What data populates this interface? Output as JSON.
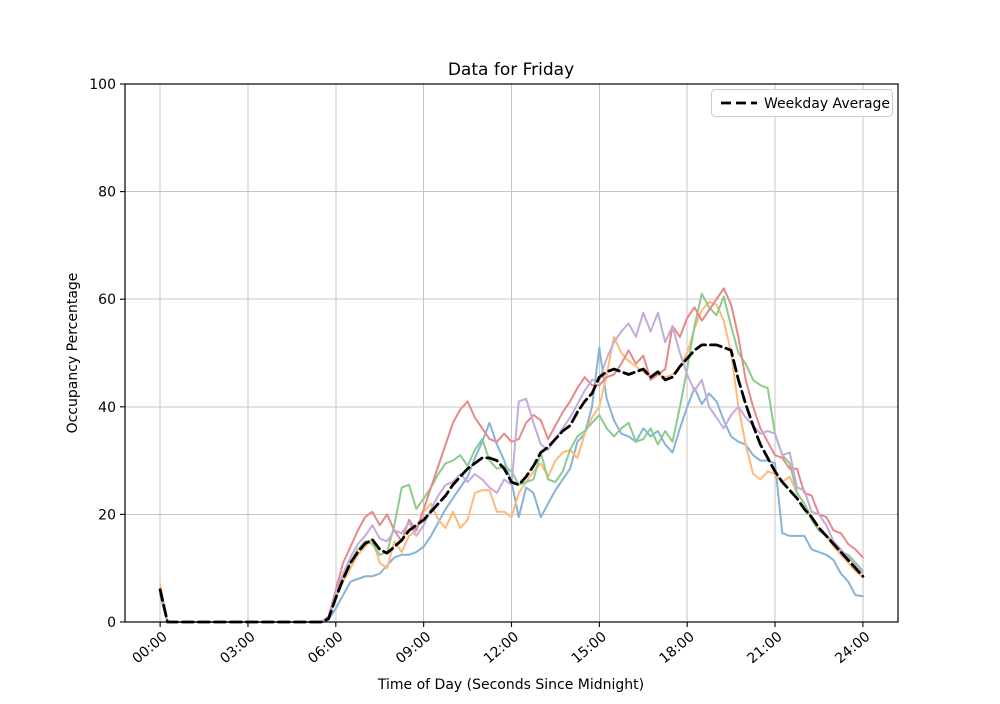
{
  "chart_data": {
    "type": "line",
    "title": "Data for Friday",
    "xlabel": "Time of Day (Seconds Since Midnight)",
    "ylabel": "Occupancy Percentage",
    "grid": true,
    "grid_color": "#c6c6c6",
    "legend": {
      "label": "Weekday Average",
      "position": "upper right"
    },
    "ylim": [
      0,
      100
    ],
    "xlim": [
      -4320,
      90720
    ],
    "y_ticks": [
      0,
      20,
      40,
      60,
      80,
      100
    ],
    "x_ticks": [
      {
        "seconds": 0,
        "label": "00:00"
      },
      {
        "seconds": 10800,
        "label": "03:00"
      },
      {
        "seconds": 21600,
        "label": "06:00"
      },
      {
        "seconds": 32400,
        "label": "09:00"
      },
      {
        "seconds": 43200,
        "label": "12:00"
      },
      {
        "seconds": 54000,
        "label": "15:00"
      },
      {
        "seconds": 64800,
        "label": "18:00"
      },
      {
        "seconds": 75600,
        "label": "21:00"
      },
      {
        "seconds": 86400,
        "label": "24:00"
      }
    ],
    "x": {
      "start": 0,
      "step": 900,
      "count": 97,
      "unit": "seconds"
    },
    "series": [
      {
        "id": "friday-blue",
        "color": "#84B4D6",
        "width": 2,
        "dashed": false,
        "values": [
          5,
          0,
          0,
          0,
          0,
          0,
          0,
          0,
          0,
          0,
          0,
          0,
          0,
          0,
          0,
          0,
          0,
          0,
          0,
          0,
          0,
          0,
          0,
          0.5,
          2.5,
          5,
          7.5,
          8,
          8.5,
          8.5,
          9,
          10.5,
          12,
          12.5,
          12.5,
          13,
          14,
          16,
          18.5,
          21,
          23,
          25,
          27,
          30.5,
          33.5,
          37,
          33,
          30,
          26,
          19.5,
          25,
          24,
          19.5,
          22,
          24.5,
          26.5,
          28.5,
          33.5,
          35,
          40,
          51,
          41.5,
          37.5,
          35,
          34.5,
          33.5,
          36,
          34.5,
          35.5,
          33,
          31.5,
          36,
          40,
          43.5,
          40.5,
          42.5,
          41,
          37.5,
          34.5,
          33.5,
          33,
          31,
          30,
          30,
          29.5,
          16.5,
          16,
          16,
          16,
          13.5,
          13,
          12.5,
          11.5,
          9,
          7.5,
          5,
          4.8
        ]
      },
      {
        "id": "friday-orange",
        "color": "#FFB97A",
        "width": 2,
        "dashed": false,
        "values": [
          7,
          0,
          0,
          0,
          0,
          0,
          0,
          0,
          0,
          0,
          0,
          0,
          0,
          0,
          0,
          0,
          0,
          0,
          0,
          0,
          0,
          0,
          0,
          0.5,
          4.5,
          7.5,
          10,
          12.5,
          14,
          15.5,
          11,
          10,
          15,
          13,
          16,
          17,
          20.5,
          22,
          19,
          17.5,
          20.5,
          17.5,
          19,
          24,
          24.5,
          24.5,
          20.5,
          20.5,
          19.5,
          24,
          26,
          28,
          29.5,
          27,
          30,
          31.5,
          32,
          30.5,
          35,
          38,
          40,
          46,
          53,
          50,
          48.5,
          47.5,
          46.5,
          45.5,
          46,
          45.5,
          46,
          47.5,
          50,
          54.5,
          58,
          59.5,
          59,
          56,
          50,
          40,
          33,
          27.5,
          26.5,
          28,
          27.5,
          26,
          27,
          24,
          22,
          19.5,
          17.5,
          16,
          14,
          12.5,
          11,
          9.5,
          8.3
        ]
      },
      {
        "id": "friday-green",
        "color": "#8BCB8B",
        "width": 2,
        "dashed": false,
        "values": [
          6,
          0,
          0,
          0,
          0,
          0,
          0,
          0,
          0,
          0,
          0,
          0,
          0,
          0,
          0,
          0,
          0,
          0,
          0,
          0,
          0,
          0,
          0,
          0.5,
          5.5,
          8.5,
          11,
          13.5,
          15,
          14.5,
          12.5,
          13,
          18,
          25,
          25.5,
          21,
          23,
          25,
          27.5,
          29.5,
          30,
          31,
          29,
          32,
          34,
          30,
          28.5,
          29,
          28,
          25.5,
          26,
          26.5,
          31.5,
          26.5,
          26,
          28,
          32,
          34.5,
          35.5,
          37,
          38.5,
          36,
          34.5,
          36,
          37,
          33.5,
          34,
          36,
          33,
          35.5,
          33.5,
          40,
          47,
          55,
          61,
          58.5,
          57,
          60.5,
          55,
          50,
          48,
          45,
          44,
          43.5,
          35,
          31,
          29.5,
          24,
          22,
          19,
          17,
          16,
          15,
          13,
          12.5,
          11,
          9.5
        ]
      },
      {
        "id": "friday-red",
        "color": "#E88889",
        "width": 2,
        "dashed": false,
        "values": [
          6,
          0,
          0,
          0,
          0,
          0,
          0,
          0,
          0,
          0,
          0,
          0,
          0,
          0,
          0,
          0,
          0,
          0,
          0,
          0,
          0,
          0,
          0,
          1,
          6,
          11,
          14,
          17,
          19.5,
          20.5,
          18,
          20,
          17,
          15,
          19,
          17,
          21,
          25,
          29,
          33,
          37,
          39.5,
          41,
          38,
          36,
          34,
          33.5,
          35,
          33.5,
          34,
          37,
          38.5,
          37.5,
          34,
          36.5,
          39,
          41,
          43.5,
          45.5,
          44,
          44,
          45.5,
          46,
          48,
          50.5,
          48,
          49.5,
          45,
          46,
          47,
          55,
          53,
          56.5,
          58.5,
          56,
          58,
          60,
          62,
          59,
          53,
          45,
          40,
          36,
          33.5,
          31,
          30.5,
          28.5,
          28.5,
          24,
          23.5,
          20,
          19.5,
          17,
          16.5,
          14.5,
          13.5,
          12
        ]
      },
      {
        "id": "friday-purple",
        "color": "#C4ABDB",
        "width": 2,
        "dashed": false,
        "values": [
          6,
          0,
          0,
          0,
          0,
          0,
          0,
          0,
          0,
          0,
          0,
          0,
          0,
          0,
          0,
          0,
          0,
          0,
          0,
          0,
          0,
          0,
          0,
          0.5,
          5.5,
          9,
          12,
          14.5,
          16,
          18,
          15.5,
          15,
          17,
          16.5,
          18.5,
          16,
          18,
          21,
          23.5,
          25.5,
          26,
          27.5,
          26,
          27.5,
          26.5,
          25,
          24,
          26.5,
          25.5,
          41,
          41.5,
          37,
          33,
          32,
          34,
          36,
          38,
          40.5,
          43,
          45,
          45,
          49,
          52,
          54,
          55.5,
          53,
          57.5,
          54,
          57.5,
          52,
          55,
          50,
          46,
          43,
          45,
          40,
          38,
          36,
          38.5,
          40,
          38,
          36.5,
          35,
          35.5,
          35,
          31,
          31.5,
          25,
          24.5,
          20.5,
          20,
          18,
          15,
          13.5,
          12,
          10.5,
          9
        ]
      },
      {
        "id": "weekday-average",
        "name": "Weekday Average",
        "color": "#000000",
        "width": 2.8,
        "dashed": true,
        "values": [
          6,
          0,
          0,
          0,
          0,
          0,
          0,
          0,
          0,
          0,
          0,
          0,
          0,
          0,
          0,
          0,
          0,
          0,
          0,
          0,
          0,
          0,
          0,
          0.6,
          4.5,
          8,
          11,
          13,
          14.6,
          15.3,
          13.5,
          12.8,
          14,
          15.2,
          17,
          18,
          19,
          20.5,
          22,
          23.5,
          25.5,
          27,
          28.5,
          29.5,
          30.5,
          30.5,
          30,
          28.5,
          26,
          25.5,
          27,
          29,
          31.5,
          32.5,
          34,
          35.5,
          36.5,
          39,
          41,
          42.5,
          45.5,
          46.5,
          47,
          46.5,
          46,
          46.5,
          47,
          45.5,
          46.5,
          45,
          45.5,
          47.5,
          49,
          50.5,
          51.5,
          51.5,
          51.5,
          51,
          50.5,
          45,
          40.5,
          36.5,
          33,
          30.5,
          28,
          26,
          24.5,
          23,
          21,
          19.5,
          17.5,
          16,
          14.5,
          13,
          11.5,
          10,
          8.5
        ]
      }
    ]
  }
}
